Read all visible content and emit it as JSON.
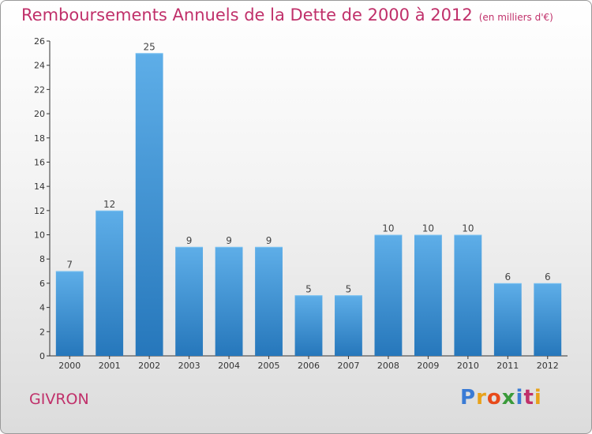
{
  "chart_data": {
    "type": "bar",
    "title": "Remboursements Annuels de la Dette de 2000 à 2012",
    "subtitle": "(en milliers d'€)",
    "categories": [
      "2000",
      "2001",
      "2002",
      "2003",
      "2004",
      "2005",
      "2006",
      "2007",
      "2008",
      "2009",
      "2010",
      "2011",
      "2012"
    ],
    "values": [
      7,
      12,
      25,
      9,
      9,
      9,
      5,
      5,
      10,
      10,
      10,
      6,
      6
    ],
    "ylim": [
      0,
      26
    ],
    "yticks": [
      0,
      2,
      4,
      6,
      8,
      10,
      12,
      14,
      16,
      18,
      20,
      22,
      24,
      26
    ],
    "grid": false,
    "bar_color": "#3a8fd4",
    "bar_highlight": "#5eaee8"
  },
  "footer": {
    "town": "GIVRON",
    "logo_letters": [
      "P",
      "r",
      "o",
      "x",
      "i",
      "t",
      "i"
    ],
    "logo_colors": [
      "#3a7bd5",
      "#e8a21a",
      "#e84a1a",
      "#3a9a3a",
      "#3a7bd5",
      "#c0306a",
      "#e8a21a"
    ]
  },
  "colors": {
    "accent": "#c0306a"
  }
}
